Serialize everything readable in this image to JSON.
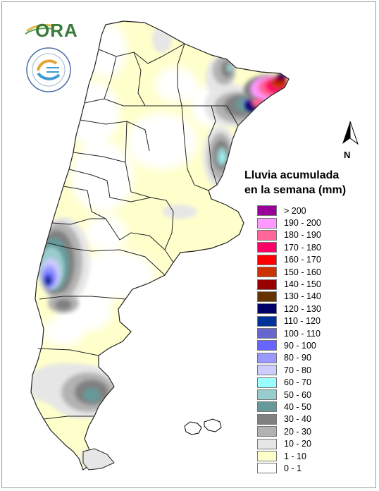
{
  "logo": {
    "text": "ORA"
  },
  "north_arrow": {
    "label": "N"
  },
  "legend": {
    "title_line1": "Lluvia acumulada",
    "title_line2": "en la semana (mm)",
    "items": [
      {
        "label": "> 200",
        "color": "#990099"
      },
      {
        "label": "190 - 200",
        "color": "#ff99ff"
      },
      {
        "label": "180 - 190",
        "color": "#ff6699"
      },
      {
        "label": "170 - 180",
        "color": "#ff0066"
      },
      {
        "label": "160 - 170",
        "color": "#ff0000"
      },
      {
        "label": "150 - 160",
        "color": "#cc3300"
      },
      {
        "label": "140 - 150",
        "color": "#990000"
      },
      {
        "label": "130 - 140",
        "color": "#663300"
      },
      {
        "label": "120 - 130",
        "color": "#000066"
      },
      {
        "label": "110 - 120",
        "color": "#003399"
      },
      {
        "label": "100 - 110",
        "color": "#6666cc"
      },
      {
        "label": "90 - 100",
        "color": "#6666ff"
      },
      {
        "label": "80 - 90",
        "color": "#9999ff"
      },
      {
        "label": "70 - 80",
        "color": "#ccccff"
      },
      {
        "label": "60 - 70",
        "color": "#99ffff"
      },
      {
        "label": "50 - 60",
        "color": "#99cccc"
      },
      {
        "label": "40 - 50",
        "color": "#669999"
      },
      {
        "label": "30 - 40",
        "color": "#808080"
      },
      {
        "label": "20 - 30",
        "color": "#b2b2b2"
      },
      {
        "label": "10 - 20",
        "color": "#e6e6e6"
      },
      {
        "label": "1 - 10",
        "color": "#ffffcc"
      },
      {
        "label": "0 - 1",
        "color": "#ffffff"
      }
    ]
  }
}
